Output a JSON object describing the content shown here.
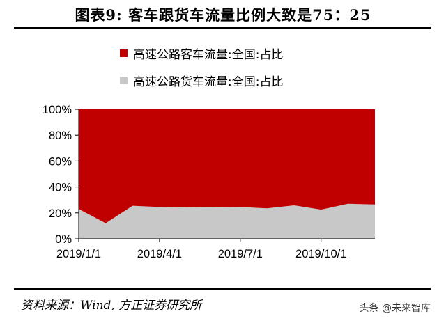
{
  "header": {
    "title": "图表9:   客车跟货车流量比例大致是75：25"
  },
  "legend": {
    "items": [
      {
        "label": "高速公路客车流量:全国:占比",
        "color": "#c00000"
      },
      {
        "label": "高速公路货车流量:全国:占比",
        "color": "#c8c8c8"
      }
    ]
  },
  "footer": {
    "source": "资料来源：Wind, 方正证券研究所",
    "watermark": "头条 @未来智库"
  },
  "chart_data": {
    "type": "area",
    "stacked": true,
    "x": [
      "2019/1/1",
      "2019/2/1",
      "2019/3/1",
      "2019/4/1",
      "2019/5/1",
      "2019/6/1",
      "2019/7/1",
      "2019/8/1",
      "2019/9/1",
      "2019/10/1",
      "2019/11/1",
      "2019/12/1"
    ],
    "x_tick_labels": [
      "2019/1/1",
      "2019/4/1",
      "2019/7/1",
      "2019/10/1"
    ],
    "y_tick_labels": [
      "0%",
      "20%",
      "40%",
      "60%",
      "80%",
      "100%"
    ],
    "ylim": [
      0,
      100
    ],
    "series": [
      {
        "name": "高速公路货车流量:全国:占比",
        "color": "#c8c8c8",
        "values": [
          23,
          12,
          25.5,
          24.5,
          24.2,
          24.3,
          24.5,
          23.5,
          25.8,
          22.5,
          27,
          26.5
        ]
      },
      {
        "name": "高速公路客车流量:全国:占比",
        "color": "#c00000",
        "values": [
          77,
          88,
          74.5,
          75.5,
          75.8,
          75.7,
          75.5,
          76.5,
          74.2,
          77.5,
          73,
          73.5
        ]
      }
    ],
    "xlabel": "",
    "ylabel": "",
    "grid": false,
    "legend_position": "top"
  }
}
